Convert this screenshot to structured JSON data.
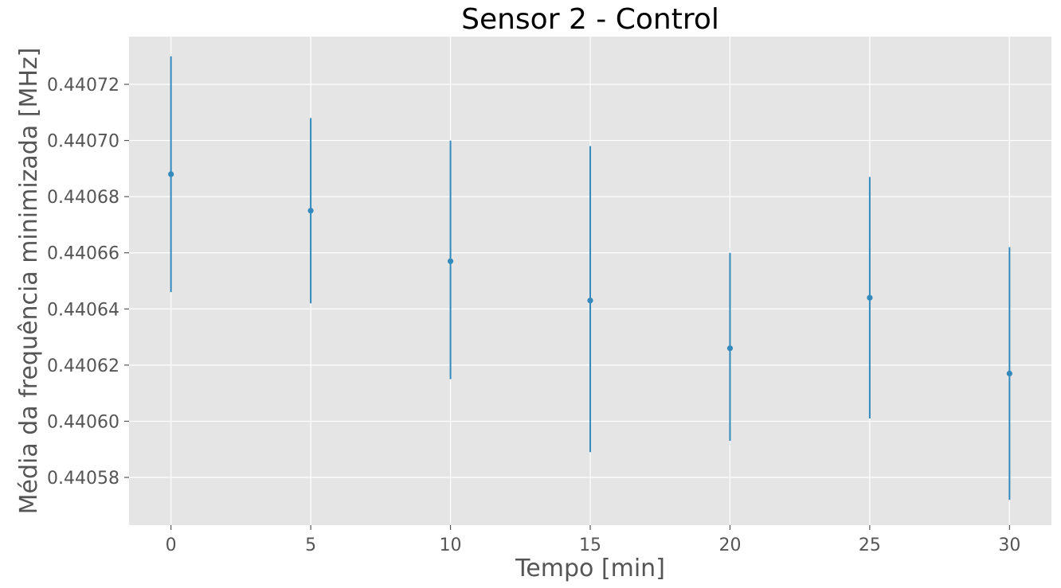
{
  "chart_data": {
    "type": "scatter",
    "title": "Sensor 2 - Control",
    "xlabel": "Tempo [min]",
    "ylabel": "Média da frequência minimizada [MHz]",
    "xlim": [
      -1.5,
      31.5
    ],
    "ylim": [
      0.440563,
      0.440737
    ],
    "xticks": [
      0,
      5,
      10,
      15,
      20,
      25,
      30
    ],
    "xtick_labels": [
      "0",
      "5",
      "10",
      "15",
      "20",
      "25",
      "30"
    ],
    "yticks": [
      0.44058,
      0.4406,
      0.44062,
      0.44064,
      0.44066,
      0.44068,
      0.4407,
      0.44072
    ],
    "ytick_labels": [
      "0.44058",
      "0.44060",
      "0.44062",
      "0.44064",
      "0.44066",
      "0.44068",
      "0.44070",
      "0.44072"
    ],
    "grid": true,
    "series": [
      {
        "x": [
          0,
          5,
          10,
          15,
          20,
          25,
          30
        ],
        "y": [
          0.440688,
          0.440675,
          0.440657,
          0.440643,
          0.440626,
          0.440644,
          0.440617
        ],
        "yerr_low": [
          0.440646,
          0.440642,
          0.440615,
          0.440589,
          0.440593,
          0.440601,
          0.440572
        ],
        "yerr_high": [
          0.44073,
          0.440708,
          0.4407,
          0.440698,
          0.44066,
          0.440687,
          0.440662
        ],
        "color": "#348abd"
      }
    ]
  }
}
